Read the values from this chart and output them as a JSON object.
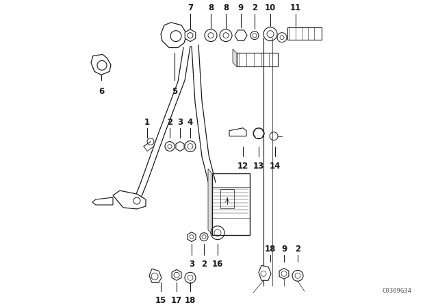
{
  "background_color": "#ffffff",
  "diagram_color": "#1a1a1a",
  "watermark": "C0309G34",
  "label_fontsize": 8.5,
  "fig_width": 6.4,
  "fig_height": 4.48,
  "dpi": 100
}
